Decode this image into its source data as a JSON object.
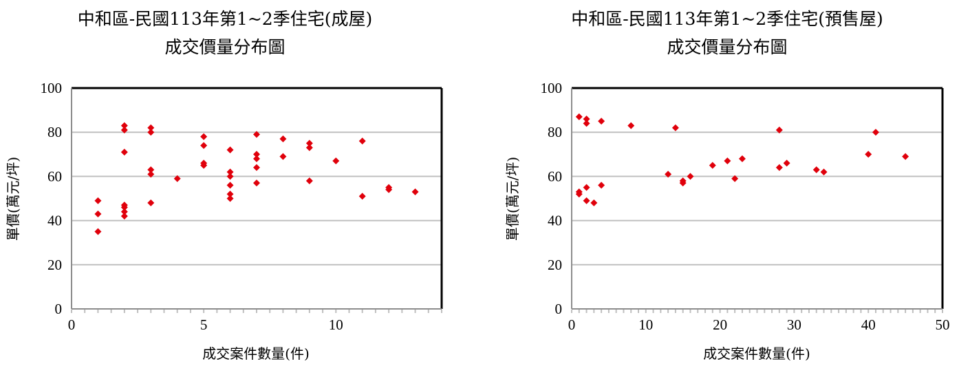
{
  "chart_data": [
    {
      "type": "scatter",
      "title": "中和區-民國113年第1~2季住宅(成屋)",
      "subtitle": "成交價量分布圖",
      "xlabel": "成交案件數量(件)",
      "ylabel": "單價(萬元/坪)",
      "xlim": [
        0,
        14
      ],
      "ylim": [
        0,
        100
      ],
      "xticks": [
        "0",
        "5",
        "10"
      ],
      "yticks": [
        "0",
        "20",
        "40",
        "60",
        "80",
        "100"
      ],
      "grid": true,
      "marker_color": "#e0000b",
      "points": [
        [
          1,
          49
        ],
        [
          1,
          43
        ],
        [
          1,
          35
        ],
        [
          2,
          83
        ],
        [
          2,
          81
        ],
        [
          2,
          71
        ],
        [
          2,
          47
        ],
        [
          2,
          46
        ],
        [
          2,
          44
        ],
        [
          2,
          42
        ],
        [
          3,
          82
        ],
        [
          3,
          80
        ],
        [
          3,
          63
        ],
        [
          3,
          61
        ],
        [
          3,
          48
        ],
        [
          4,
          59
        ],
        [
          5,
          78
        ],
        [
          5,
          74
        ],
        [
          5,
          66
        ],
        [
          5,
          65
        ],
        [
          6,
          72
        ],
        [
          6,
          62
        ],
        [
          6,
          60
        ],
        [
          6,
          56
        ],
        [
          6,
          52
        ],
        [
          6,
          50
        ],
        [
          7,
          79
        ],
        [
          7,
          70
        ],
        [
          7,
          68
        ],
        [
          7,
          64
        ],
        [
          7,
          57
        ],
        [
          8,
          77
        ],
        [
          8,
          69
        ],
        [
          9,
          75
        ],
        [
          9,
          73
        ],
        [
          9,
          58
        ],
        [
          10,
          67
        ],
        [
          11,
          76
        ],
        [
          11,
          51
        ],
        [
          12,
          55
        ],
        [
          12,
          54
        ],
        [
          13,
          53
        ]
      ]
    },
    {
      "type": "scatter",
      "title": "中和區-民國113年第1~2季住宅(預售屋)",
      "subtitle": "成交價量分布圖",
      "xlabel": "成交案件數量(件)",
      "ylabel": "單價(萬元/坪)",
      "xlim": [
        0,
        50
      ],
      "ylim": [
        0,
        100
      ],
      "xticks": [
        "0",
        "10",
        "20",
        "30",
        "40",
        "50"
      ],
      "yticks": [
        "0",
        "20",
        "40",
        "60",
        "80",
        "100"
      ],
      "grid": true,
      "marker_color": "#e0000b",
      "points": [
        [
          1,
          87
        ],
        [
          1,
          53
        ],
        [
          1,
          52
        ],
        [
          2,
          86
        ],
        [
          2,
          84
        ],
        [
          2,
          55
        ],
        [
          2,
          49
        ],
        [
          3,
          48
        ],
        [
          4,
          85
        ],
        [
          4,
          56
        ],
        [
          8,
          83
        ],
        [
          13,
          61
        ],
        [
          14,
          82
        ],
        [
          15,
          58
        ],
        [
          15,
          57
        ],
        [
          16,
          60
        ],
        [
          19,
          65
        ],
        [
          21,
          67
        ],
        [
          22,
          59
        ],
        [
          23,
          68
        ],
        [
          28,
          81
        ],
        [
          28,
          64
        ],
        [
          29,
          66
        ],
        [
          33,
          63
        ],
        [
          34,
          62
        ],
        [
          40,
          70
        ],
        [
          41,
          80
        ],
        [
          45,
          69
        ]
      ]
    }
  ]
}
